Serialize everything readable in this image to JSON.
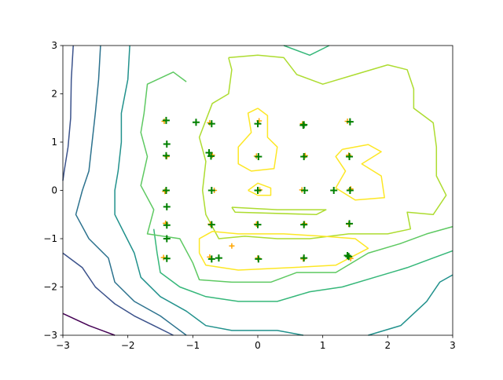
{
  "chart_data": {
    "type": "contour",
    "xlim": [
      -3,
      3
    ],
    "ylim": [
      -3,
      3
    ],
    "xticks": [
      {
        "value": -3,
        "label": "−3"
      },
      {
        "value": -2,
        "label": "−2"
      },
      {
        "value": -1,
        "label": "−1"
      },
      0,
      1,
      2,
      3
    ],
    "yticks": [
      {
        "value": -3,
        "label": "−3"
      },
      {
        "value": -2,
        "label": "−2"
      },
      {
        "value": -1,
        "label": "−1"
      },
      0,
      1,
      2,
      3
    ],
    "contours": [
      {
        "color": "#440154",
        "x": [
          -3,
          -2.6,
          -2.2
        ],
        "y": [
          -2.55,
          -2.8,
          -3
        ]
      },
      {
        "color": "#3b528b",
        "x": [
          -2.84,
          -2.87,
          -2.88,
          -2.92,
          -2.98,
          -3,
          null,
          -3,
          -2.7,
          -2.5,
          -2.2,
          -1.9,
          -1.6,
          -1.3
        ],
        "y": [
          3,
          2.3,
          1.5,
          0.9,
          0.4,
          0.2,
          null,
          -1.3,
          -1.6,
          -2.0,
          -2.35,
          -2.6,
          -2.8,
          -3
        ]
      },
      {
        "color": "#2c728e",
        "x": [
          -2.42,
          -2.45,
          -2.5,
          -2.55,
          -2.6,
          -2.7,
          -2.8,
          -2.6,
          -2.3,
          -2.2,
          -1.9,
          -1.5,
          -1.3,
          -1.1
        ],
        "y": [
          3,
          2.3,
          1.6,
          1.0,
          0.4,
          0,
          -0.5,
          -1.0,
          -1.4,
          -1.9,
          -2.3,
          -2.6,
          -2.8,
          -3
        ]
      },
      {
        "color": "#21918c",
        "x": [
          -1.97,
          -2.0,
          -2.1,
          -2.1,
          -2.15,
          -2.2,
          -2.2,
          -2.05,
          -1.9,
          -1.8,
          -1.5,
          -1.1,
          -0.8,
          -0.4,
          0.3,
          0.7,
          null,
          1.7,
          2.2,
          2.6,
          2.8,
          3
        ],
        "y": [
          3,
          2.3,
          1.6,
          1.0,
          0.4,
          0,
          -0.5,
          -0.9,
          -1.3,
          -1.8,
          -2.2,
          -2.5,
          -2.8,
          -2.9,
          -2.9,
          -3,
          null,
          -3,
          -2.8,
          -2.3,
          -1.9,
          -1.75
        ]
      },
      {
        "color": "#35b779",
        "x": [
          -1.6,
          -1.55,
          -1.5,
          -1.2,
          -0.8,
          -0.3,
          0.3,
          0.8,
          1.3,
          1.8,
          2.3,
          2.7,
          3,
          null,
          0.4,
          0.8,
          1.1
        ],
        "y": [
          -0.8,
          -1.3,
          -1.7,
          -2.0,
          -2.2,
          -2.3,
          -2.3,
          -2.1,
          -2.0,
          -1.8,
          -1.6,
          -1.4,
          -1.25,
          null,
          3,
          2.8,
          3
        ]
      },
      {
        "color": "#5ec962",
        "x": [
          -1.1,
          -1.3,
          -1.7,
          -1.75,
          -1.8,
          -1.7,
          -1.8,
          -1.6,
          -1.7,
          -1.2,
          -1.0,
          -0.9,
          -0.4,
          0.2,
          0.6,
          1.2,
          1.7,
          2.2,
          2.6,
          3
        ],
        "y": [
          2.25,
          2.45,
          2.2,
          1.6,
          1.2,
          0.7,
          0.1,
          -0.4,
          -0.9,
          -1.0,
          -1.5,
          -1.85,
          -1.9,
          -1.9,
          -1.7,
          -1.7,
          -1.3,
          -1.1,
          -0.9,
          -0.75
        ]
      },
      {
        "color": "#addc30",
        "x": [
          -0.45,
          0,
          0.4,
          0.6,
          1.0,
          1.5,
          2.0,
          2.3,
          2.4,
          2.4,
          2.7,
          2.75,
          2.75,
          2.9,
          2.7,
          2.3,
          2.35,
          2.0,
          1.4,
          0.8,
          0.3,
          -0.2,
          -0.6,
          -0.8,
          -0.85,
          -0.8,
          -0.9,
          -0.7,
          -0.45,
          -0.4,
          -0.45,
          null,
          -0.4,
          0.3,
          1.05,
          0.9,
          -0.35,
          -0.4
        ],
        "y": [
          2.75,
          2.8,
          2.75,
          2.4,
          2.2,
          2.4,
          2.6,
          2.5,
          2.1,
          1.7,
          1.4,
          0.9,
          0.3,
          -0.1,
          -0.5,
          -0.45,
          -0.8,
          -0.9,
          -0.9,
          -1.0,
          -1.0,
          -0.95,
          -1.0,
          -0.5,
          0,
          0.6,
          1.1,
          1.8,
          2.0,
          2.5,
          2.75,
          null,
          -0.35,
          -0.4,
          -0.4,
          -0.5,
          -0.45,
          -0.35
        ]
      },
      {
        "color": "#fde725",
        "x": [
          0,
          0.15,
          0.15,
          0.3,
          0.25,
          -0.1,
          -0.3,
          -0.3,
          -0.1,
          -0.15,
          0,
          null,
          -0.15,
          0,
          0.2,
          0.2,
          0,
          -0.15,
          null,
          1.3,
          1.7,
          1.9,
          1.6,
          1.9,
          1.95,
          1.5,
          1.2,
          1.35,
          1.2,
          1.3,
          null,
          -0.9,
          -0.9,
          -0.7,
          -0.3,
          0.4,
          1.0,
          1.5,
          1.7,
          1.2,
          0.5,
          -0.3,
          -0.8,
          -0.9
        ],
        "y": [
          1.7,
          1.55,
          1.1,
          0.9,
          0.45,
          0.4,
          0.55,
          0.9,
          1.2,
          1.6,
          1.7,
          null,
          0,
          0.15,
          0.05,
          -0.1,
          -0.1,
          0,
          null,
          0.85,
          0.95,
          0.8,
          0.55,
          0.3,
          -0.15,
          -0.2,
          0.05,
          0.4,
          0.7,
          0.85,
          null,
          -1.3,
          -1.0,
          -0.85,
          -0.9,
          -0.9,
          -0.95,
          -1.0,
          -1.2,
          -1.55,
          -1.6,
          -1.65,
          -1.55,
          -1.3
        ]
      }
    ],
    "series": [
      {
        "color": "orange",
        "marker": "+",
        "x": [
          -1.44,
          -1.4,
          -1.43,
          -1.42,
          -1.45,
          -0.74,
          -0.7,
          -0.67,
          -0.73,
          -0.74,
          0.02,
          -0.02,
          0.03,
          -0.02,
          0.0,
          0.69,
          0.73,
          0.68,
          0.72,
          0.7,
          1.38,
          1.4,
          1.43,
          1.4,
          1.43,
          -0.4
        ],
        "y": [
          1.43,
          0.7,
          -0.02,
          -0.68,
          -1.39,
          1.4,
          0.73,
          0.0,
          -0.7,
          -1.38,
          1.44,
          0.71,
          0.01,
          -0.7,
          -1.4,
          1.38,
          0.72,
          0.01,
          -0.69,
          -1.42,
          1.43,
          0.73,
          0.03,
          -0.7,
          -1.41,
          -1.15
        ]
      },
      {
        "color": "green",
        "marker": "+",
        "x": [
          -1.41,
          -1.41,
          -1.41,
          -1.4,
          -1.4,
          -0.71,
          -0.72,
          -0.71,
          -0.71,
          -0.71,
          0.0,
          0.01,
          0.0,
          0.0,
          0.01,
          0.71,
          0.71,
          0.72,
          0.71,
          0.71,
          1.42,
          1.41,
          1.42,
          1.41,
          1.4,
          -0.95,
          -1.4,
          -1.4,
          -1.4,
          -0.6,
          -0.75,
          1.17,
          1.38,
          0.7
        ],
        "y": [
          1.45,
          0.72,
          0.0,
          -0.72,
          -1.41,
          1.38,
          0.71,
          0.0,
          -0.71,
          -1.42,
          1.38,
          0.7,
          0.0,
          -0.71,
          -1.42,
          1.36,
          0.7,
          0.0,
          -0.71,
          -1.4,
          1.42,
          0.7,
          0.0,
          -0.69,
          -1.37,
          1.41,
          0.96,
          -0.34,
          -1.0,
          -1.4,
          0.78,
          0.0,
          -1.35,
          1.35
        ]
      }
    ]
  }
}
